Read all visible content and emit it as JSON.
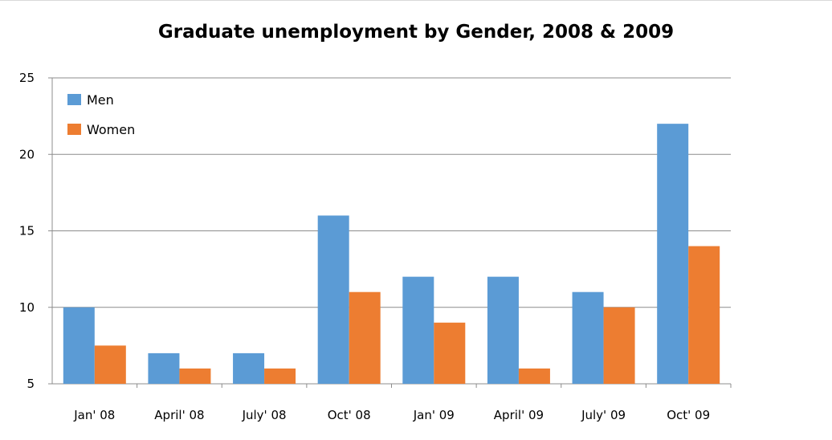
{
  "chart_data": {
    "type": "bar",
    "title": "Graduate unemployment by Gender, 2008 & 2009",
    "xlabel": "",
    "ylabel": "",
    "categories": [
      "Jan' 08",
      "April' 08",
      "July' 08",
      "Oct' 08",
      "Jan' 09",
      "April' 09",
      "July' 09",
      "Oct' 09"
    ],
    "series": [
      {
        "name": "Men",
        "color": "#5b9bd5",
        "values": [
          10,
          7,
          7,
          16,
          12,
          12,
          11,
          22
        ]
      },
      {
        "name": "Women",
        "color": "#ed7d31",
        "values": [
          7.5,
          6,
          6,
          11,
          9,
          6,
          10,
          14
        ]
      }
    ],
    "ylim": [
      5,
      25
    ],
    "yticks": [
      5,
      10,
      15,
      20,
      25
    ],
    "grid": true,
    "legend_position": "top-left"
  }
}
